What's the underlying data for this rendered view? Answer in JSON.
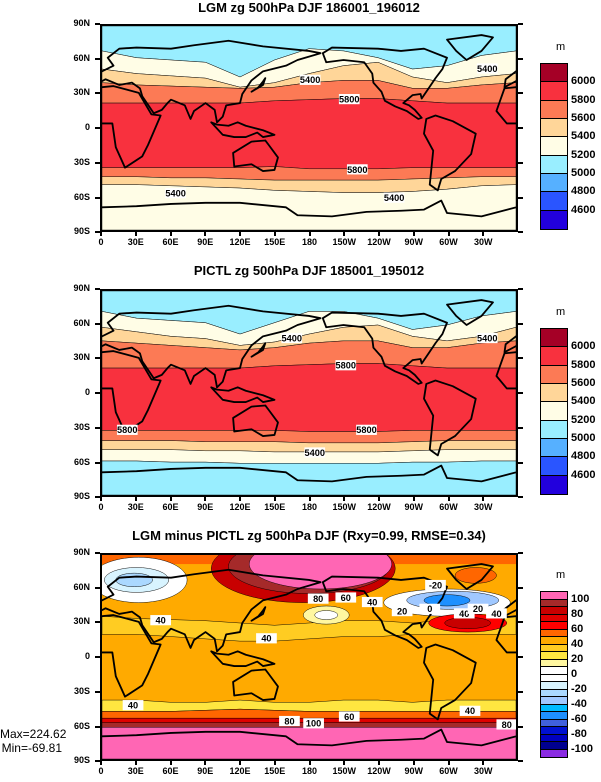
{
  "chart_data": [
    {
      "type": "heatmap",
      "title": "LGM zg 500hPa DJF 186001_196012",
      "unit": "m",
      "levels": [
        "6000",
        "5800",
        "5600",
        "5400",
        "5200",
        "5000",
        "4800",
        "4600"
      ],
      "colors": [
        "#A50026",
        "#F8313E",
        "#FC7A55",
        "#FFD699",
        "#FFFDE6",
        "#99EEFF",
        "#56B0FF",
        "#2A55FF",
        "#2200DD"
      ],
      "contour_labels": [
        "5400",
        "5800",
        "5400",
        "5800",
        "5400",
        "5400"
      ],
      "band_colors_north_to_south": [
        "#99EEFF",
        "#FFFDE6",
        "#FFD699",
        "#FC7A55",
        "#F8313E",
        "#FC7A55",
        "#FFD699",
        "#FFFDE6"
      ]
    },
    {
      "type": "heatmap",
      "title": "PICTL zg 500hPa DJF 185001_195012",
      "unit": "m",
      "levels": [
        "6000",
        "5800",
        "5600",
        "5400",
        "5200",
        "5000",
        "4800",
        "4600"
      ],
      "colors": [
        "#A50026",
        "#F8313E",
        "#FC7A55",
        "#FFD699",
        "#FFFDE6",
        "#99EEFF",
        "#56B0FF",
        "#2A55FF",
        "#2200DD"
      ],
      "contour_labels": [
        "5400",
        "5800",
        "5400",
        "5800",
        "5800",
        "5400"
      ],
      "band_colors_north_to_south": [
        "#99EEFF",
        "#FFFDE6",
        "#FFD699",
        "#FC7A55",
        "#F8313E",
        "#FC7A55",
        "#FFD699",
        "#FFFDE6",
        "#99EEFF"
      ]
    },
    {
      "type": "heatmap",
      "title": "LGM minus PICTL zg 500hPa DJF (Rxy=0.99, RMSE=0.34)",
      "unit": "m",
      "levels": [
        "100",
        "80",
        "60",
        "40",
        "20",
        "0",
        "-20",
        "-40",
        "-60",
        "-80",
        "-100"
      ],
      "colors": [
        "#FF66B4",
        "#A52A2A",
        "#C80000",
        "#E00000",
        "#FF0000",
        "#FF6600",
        "#FFAA00",
        "#FFCC22",
        "#FFE640",
        "#FFF7A0",
        "#FFFFFF",
        "#FFFFFF",
        "#D8F4FF",
        "#AAD8FF",
        "#A0C8FF",
        "#00BBFF",
        "#1E90FF",
        "#4060DD",
        "#0010D0",
        "#0000C0",
        "#000090",
        "#8A2BE2"
      ],
      "contour_labels": [
        "40",
        "40",
        "40",
        "40",
        "80",
        "60",
        "40",
        "20",
        "0",
        "20",
        "40",
        "80",
        "100",
        "60",
        "40",
        "80",
        "-20"
      ],
      "max_label": "Max=224.62",
      "min_label": "Min=-69.81"
    }
  ],
  "axes": {
    "yticks": [
      "90N",
      "60N",
      "30N",
      "0",
      "30S",
      "60S",
      "90S"
    ],
    "xticks": [
      "0",
      "30E",
      "60E",
      "90E",
      "120E",
      "150E",
      "180",
      "150W",
      "120W",
      "90W",
      "60W",
      "30W"
    ]
  }
}
